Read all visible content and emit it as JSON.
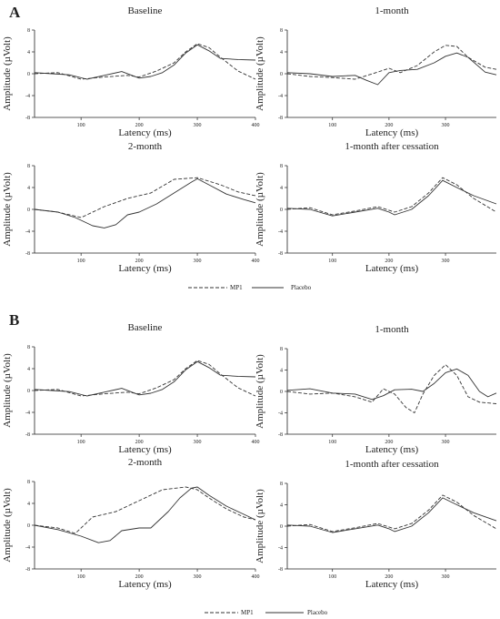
{
  "figure": {
    "legend": {
      "dashed": "MP1",
      "solid": "Placebo"
    },
    "panel_labels": [
      "A",
      "B"
    ]
  },
  "chart_data": [
    {
      "type": "line",
      "panel": "A",
      "title": "Baseline",
      "xlabel": "Latency (ms)",
      "ylabel": "Amplitude (µVolt)",
      "xlim": [
        20,
        400
      ],
      "ylim": [
        -8,
        8
      ],
      "xticks": [
        100,
        200,
        300,
        400
      ],
      "yticks": [
        8,
        4,
        0,
        -4,
        -8
      ],
      "series": [
        {
          "name": "MP1",
          "style": "dashed",
          "x": [
            20,
            60,
            100,
            140,
            180,
            200,
            230,
            260,
            280,
            300,
            320,
            340,
            370,
            400
          ],
          "y": [
            0,
            0.2,
            -1,
            -0.6,
            -0.3,
            -0.6,
            0.5,
            2,
            4,
            5.5,
            4.8,
            3,
            0.5,
            -1
          ]
        },
        {
          "name": "Placebo",
          "style": "solid",
          "x": [
            20,
            50,
            80,
            110,
            140,
            170,
            200,
            220,
            240,
            260,
            280,
            300,
            320,
            340,
            370,
            400
          ],
          "y": [
            0.2,
            0,
            -0.2,
            -1,
            -0.3,
            0.4,
            -0.8,
            -0.5,
            0.2,
            1.6,
            3.8,
            5.3,
            4.2,
            2.8,
            2.6,
            2.5
          ]
        }
      ]
    },
    {
      "type": "line",
      "panel": "A",
      "title": "1-month",
      "xlabel": "Latency (ms)",
      "ylabel": "Amplitude (µVolt)",
      "xlim": [
        20,
        390
      ],
      "ylim": [
        -8,
        8
      ],
      "xticks": [
        100,
        200,
        300
      ],
      "yticks": [
        8,
        4,
        0,
        -4,
        -8
      ],
      "series": [
        {
          "name": "MP1",
          "style": "dashed",
          "x": [
            20,
            60,
            100,
            140,
            180,
            200,
            220,
            250,
            280,
            300,
            320,
            340,
            370,
            390
          ],
          "y": [
            0,
            -0.5,
            -0.7,
            -1,
            0.3,
            1,
            0.2,
            1.5,
            4,
            5.2,
            5,
            3,
            1.2,
            0.8
          ]
        },
        {
          "name": "Placebo",
          "style": "solid",
          "x": [
            20,
            60,
            100,
            140,
            160,
            180,
            200,
            220,
            250,
            280,
            300,
            320,
            340,
            360,
            370,
            390
          ],
          "y": [
            0.2,
            0,
            -0.5,
            -0.3,
            -1.2,
            -2,
            0.2,
            0.6,
            0.8,
            2,
            3.2,
            3.8,
            3,
            1.2,
            0.3,
            -0.2
          ]
        }
      ]
    },
    {
      "type": "line",
      "panel": "A",
      "title": "2-month",
      "xlabel": "Latency (ms)",
      "ylabel": "Amplitude (µVolt)",
      "xlim": [
        20,
        400
      ],
      "ylim": [
        -8,
        8
      ],
      "xticks": [
        100,
        200,
        300,
        400
      ],
      "yticks": [
        8,
        4,
        0,
        -4,
        -8
      ],
      "series": [
        {
          "name": "MP1",
          "style": "dashed",
          "x": [
            20,
            60,
            100,
            140,
            180,
            220,
            260,
            300,
            340,
            370,
            400
          ],
          "y": [
            0,
            -0.5,
            -1.5,
            0.5,
            2,
            3,
            5.5,
            5.8,
            4.5,
            3.2,
            2.5
          ]
        },
        {
          "name": "Placebo",
          "style": "solid",
          "x": [
            20,
            60,
            90,
            120,
            140,
            160,
            180,
            200,
            230,
            260,
            290,
            300,
            320,
            350,
            380,
            400
          ],
          "y": [
            0,
            -0.5,
            -1.5,
            -3,
            -3.4,
            -2.8,
            -1,
            -0.5,
            1,
            3,
            5,
            5.6,
            4.5,
            2.8,
            1.8,
            1.2
          ]
        }
      ]
    },
    {
      "type": "line",
      "panel": "A",
      "title": "1-month after cessation",
      "xlabel": "Latency (ms)",
      "ylabel": "Amplitude (µVolt)",
      "xlim": [
        20,
        390
      ],
      "ylim": [
        -8,
        8
      ],
      "xticks": [
        100,
        200,
        300
      ],
      "yticks": [
        8,
        4,
        0,
        -4,
        -8
      ],
      "series": [
        {
          "name": "MP1",
          "style": "dashed",
          "x": [
            20,
            60,
            100,
            140,
            180,
            210,
            240,
            270,
            295,
            320,
            350,
            390
          ],
          "y": [
            0,
            0.3,
            -1,
            -0.3,
            0.5,
            -0.5,
            0.5,
            3,
            5.8,
            4.5,
            2,
            -0.5
          ]
        },
        {
          "name": "Placebo",
          "style": "solid",
          "x": [
            20,
            60,
            100,
            140,
            180,
            200,
            210,
            240,
            270,
            295,
            320,
            350,
            390
          ],
          "y": [
            0.2,
            0,
            -1.2,
            -0.5,
            0.2,
            -0.5,
            -1,
            0,
            2.5,
            5.3,
            4,
            2.5,
            1
          ]
        }
      ]
    },
    {
      "type": "line",
      "panel": "B",
      "title": "Baseline",
      "xlabel": "Latency (ms)",
      "ylabel": "Amplitude (µVolt)",
      "xlim": [
        20,
        400
      ],
      "ylim": [
        -8,
        8
      ],
      "xticks": [
        100,
        200,
        300,
        400
      ],
      "yticks": [
        8,
        4,
        0,
        -4,
        -8
      ],
      "series": [
        {
          "name": "MP1",
          "style": "dashed",
          "x": [
            20,
            60,
            100,
            140,
            180,
            200,
            230,
            260,
            280,
            300,
            320,
            340,
            370,
            400
          ],
          "y": [
            0,
            0.2,
            -1,
            -0.6,
            -0.3,
            -0.6,
            0.5,
            2,
            4,
            5.5,
            4.8,
            3,
            0.5,
            -1
          ]
        },
        {
          "name": "Placebo",
          "style": "solid",
          "x": [
            20,
            50,
            80,
            110,
            140,
            170,
            200,
            220,
            240,
            260,
            280,
            300,
            320,
            340,
            370,
            400
          ],
          "y": [
            0.2,
            0,
            -0.2,
            -1,
            -0.3,
            0.4,
            -0.8,
            -0.5,
            0.2,
            1.6,
            3.8,
            5.3,
            4.2,
            2.8,
            2.6,
            2.5
          ]
        }
      ]
    },
    {
      "type": "line",
      "panel": "B",
      "title": "1-month",
      "xlabel": "Latency (ms)",
      "ylabel": "Amplitude (µVolt)",
      "xlim": [
        20,
        390
      ],
      "ylim": [
        -8,
        8
      ],
      "xticks": [
        100,
        200,
        300
      ],
      "yticks": [
        8,
        4,
        0,
        -4,
        -8
      ],
      "series": [
        {
          "name": "MP1",
          "style": "dashed",
          "x": [
            20,
            60,
            100,
            140,
            170,
            190,
            210,
            230,
            245,
            260,
            280,
            300,
            320,
            340,
            360,
            390
          ],
          "y": [
            0,
            -0.5,
            -0.3,
            -1,
            -2,
            0.5,
            -0.5,
            -3,
            -4,
            -0.5,
            3,
            5,
            3,
            -1,
            -2,
            -2.3
          ]
        },
        {
          "name": "Placebo",
          "style": "solid",
          "x": [
            20,
            60,
            100,
            140,
            170,
            190,
            210,
            240,
            260,
            280,
            300,
            320,
            340,
            360,
            375,
            390
          ],
          "y": [
            0.2,
            0.5,
            -0.3,
            -0.5,
            -1.5,
            -0.8,
            0.3,
            0.4,
            0,
            1.5,
            3.5,
            4.2,
            3,
            0,
            -1,
            -0.3
          ]
        }
      ]
    },
    {
      "type": "line",
      "panel": "B",
      "title": "2-month",
      "xlabel": "Latency (ms)",
      "ylabel": "Amplitude (µVolt)",
      "xlim": [
        20,
        400
      ],
      "ylim": [
        -8,
        8
      ],
      "xticks": [
        100,
        200,
        300,
        400
      ],
      "yticks": [
        8,
        4,
        0,
        -4,
        -8
      ],
      "series": [
        {
          "name": "MP1",
          "style": "dashed",
          "x": [
            20,
            60,
            90,
            120,
            160,
            200,
            240,
            280,
            300,
            320,
            350,
            380,
            400
          ],
          "y": [
            0,
            -0.5,
            -1.5,
            1.5,
            2.5,
            4.5,
            6.5,
            7,
            6.5,
            5,
            3,
            1.5,
            1
          ]
        },
        {
          "name": "Placebo",
          "style": "solid",
          "x": [
            20,
            60,
            100,
            130,
            150,
            170,
            200,
            220,
            250,
            270,
            290,
            300,
            320,
            350,
            380,
            400
          ],
          "y": [
            0,
            -0.8,
            -2,
            -3.2,
            -2.8,
            -1,
            -0.5,
            -0.5,
            2.5,
            5,
            6.8,
            7,
            5.5,
            3.5,
            2,
            1
          ]
        }
      ]
    },
    {
      "type": "line",
      "panel": "B",
      "title": "1-month after cessation",
      "xlabel": "Latency (ms)",
      "ylabel": "Amplitude (µVolt)",
      "xlim": [
        20,
        390
      ],
      "ylim": [
        -8,
        8
      ],
      "xticks": [
        100,
        200,
        300
      ],
      "yticks": [
        8,
        4,
        0,
        -4,
        -8
      ],
      "series": [
        {
          "name": "MP1",
          "style": "dashed",
          "x": [
            20,
            60,
            100,
            140,
            180,
            210,
            240,
            270,
            295,
            320,
            350,
            390
          ],
          "y": [
            0,
            0.3,
            -1,
            -0.3,
            0.5,
            -0.5,
            0.5,
            3,
            5.8,
            4.5,
            2,
            -0.5
          ]
        },
        {
          "name": "Placebo",
          "style": "solid",
          "x": [
            20,
            60,
            100,
            140,
            180,
            200,
            210,
            240,
            270,
            295,
            320,
            350,
            390
          ],
          "y": [
            0.2,
            0,
            -1.2,
            -0.5,
            0.2,
            -0.5,
            -1,
            0,
            2.5,
            5.3,
            4,
            2.5,
            1
          ]
        }
      ]
    }
  ]
}
